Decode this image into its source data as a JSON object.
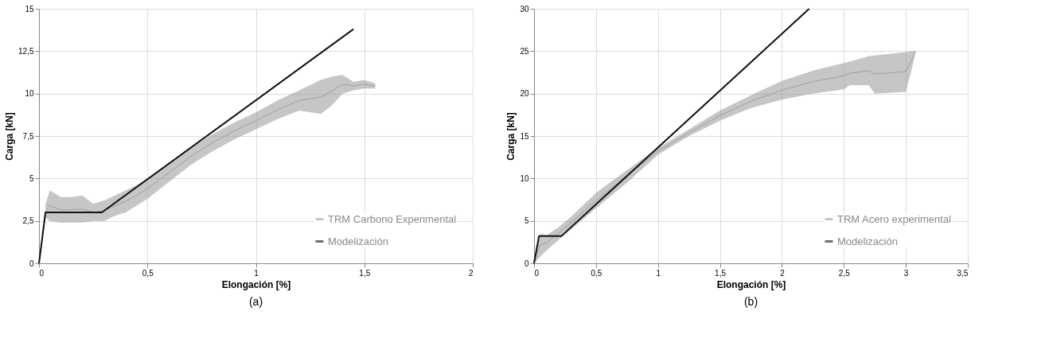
{
  "chart_data": [
    {
      "type": "line",
      "title": "(a)",
      "xlabel": "Elongación [%]",
      "ylabel": "Carga [kN]",
      "xlim": [
        0,
        2
      ],
      "ylim": [
        0,
        15
      ],
      "xticks": [
        0,
        {
          "value": 0.5,
          "label": "0,5"
        },
        1,
        {
          "value": 1.5,
          "label": "1,5"
        },
        2
      ],
      "yticks": [
        0,
        {
          "value": 2.5,
          "label": "2,5"
        },
        5,
        {
          "value": 7.5,
          "label": "7,5"
        },
        10,
        {
          "value": 12.5,
          "label": "12,5"
        },
        15
      ],
      "grid": true,
      "legend": "bottom right",
      "series": [
        {
          "name": "TRM Carbono Experimental",
          "color": "#a0a0a0",
          "x": [
            0.03,
            0.05,
            0.1,
            0.15,
            0.2,
            0.25,
            0.3,
            0.35,
            0.4,
            0.45,
            0.5,
            0.6,
            0.7,
            0.8,
            0.9,
            1.0,
            1.1,
            1.2,
            1.3,
            1.35,
            1.4,
            1.45,
            1.5,
            1.55
          ],
          "lower": [
            2.7,
            2.5,
            2.4,
            2.4,
            2.4,
            2.5,
            2.5,
            2.8,
            3.0,
            3.4,
            3.8,
            4.8,
            5.8,
            6.6,
            7.3,
            7.9,
            8.5,
            9.0,
            8.8,
            9.3,
            10.0,
            10.2,
            10.3,
            10.3
          ],
          "upper": [
            3.5,
            4.3,
            3.9,
            3.9,
            4.0,
            3.5,
            3.7,
            4.0,
            4.3,
            4.6,
            5.0,
            5.9,
            6.8,
            7.6,
            8.3,
            8.9,
            9.6,
            10.2,
            10.8,
            11.0,
            11.1,
            10.7,
            10.8,
            10.6
          ],
          "values": [
            3.1,
            3.4,
            3.15,
            3.15,
            3.2,
            3.0,
            3.1,
            3.4,
            3.65,
            4.0,
            4.4,
            5.35,
            6.3,
            7.1,
            7.8,
            8.4,
            9.05,
            9.6,
            9.8,
            10.15,
            10.55,
            10.45,
            10.55,
            10.45
          ]
        },
        {
          "name": "Modelización",
          "color": "#111111",
          "x": [
            0,
            0.03,
            0.29,
            1.45
          ],
          "values": [
            0,
            3,
            3,
            13.8
          ]
        }
      ]
    },
    {
      "type": "line",
      "title": "(b)",
      "xlabel": "Elongación [%]",
      "ylabel": "Carga [kN]",
      "xlim": [
        0,
        3.5
      ],
      "ylim": [
        0,
        30
      ],
      "xticks": [
        0,
        {
          "value": 0.5,
          "label": "0,5"
        },
        1,
        {
          "value": 1.5,
          "label": "1,5"
        },
        2,
        {
          "value": 2.5,
          "label": "2,5"
        },
        3,
        {
          "value": 3.5,
          "label": "3,5"
        }
      ],
      "yticks": [
        0,
        5,
        10,
        15,
        20,
        25,
        30
      ],
      "grid": true,
      "legend": "bottom right",
      "series": [
        {
          "name": "TRM Acero experimental",
          "color": "#a0a0a0",
          "x": [
            0,
            0.05,
            0.1,
            0.2,
            0.3,
            0.5,
            0.75,
            1.0,
            1.25,
            1.5,
            1.75,
            2.0,
            2.25,
            2.5,
            2.55,
            2.7,
            2.75,
            3.0,
            3.05,
            3.08
          ],
          "lower": [
            0,
            0.8,
            1.5,
            2.8,
            4,
            6.5,
            9.5,
            12.8,
            15,
            16.8,
            18.3,
            19.3,
            20,
            20.5,
            21,
            21,
            20,
            20.2,
            23,
            25
          ],
          "upper": [
            0.5,
            3.5,
            3.3,
            4.3,
            5.5,
            8.3,
            11,
            13.6,
            15.8,
            18,
            19.8,
            21.5,
            22.7,
            23.6,
            23.8,
            24.4,
            24.5,
            24.9,
            25,
            25
          ],
          "values": [
            0.3,
            2.2,
            2.4,
            3.6,
            4.8,
            7.4,
            10.3,
            13.2,
            15.4,
            17.4,
            19.1,
            20.4,
            21.4,
            22.1,
            22.4,
            22.7,
            22.3,
            22.6,
            24,
            25
          ]
        },
        {
          "name": "Modelización",
          "color": "#111111",
          "x": [
            0,
            0.04,
            0.22,
            2.22
          ],
          "values": [
            0,
            3.2,
            3.2,
            30
          ]
        }
      ]
    }
  ]
}
